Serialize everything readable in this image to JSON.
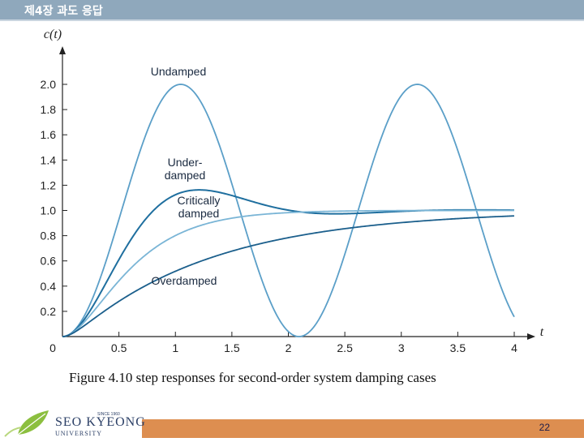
{
  "header": {
    "title": "제4장 과도 응답"
  },
  "caption": "Figure 4.10  step responses for second-order system damping cases",
  "footer": {
    "logo_name": "SEO KYEONG",
    "logo_sub": "UNIVERSITY",
    "logo_since": "SINCE 1960",
    "page_number": "22"
  },
  "colors": {
    "header": "#8fa8bc",
    "footer": "#dd8e50",
    "curve": "#2f7fb0"
  },
  "chart_data": {
    "type": "line",
    "ylabel": "c(t)",
    "xlabel": "t",
    "xlim": [
      0,
      4
    ],
    "ylim": [
      0,
      2.0
    ],
    "x_ticks": [
      "0",
      "0.5",
      "1",
      "1.5",
      "2",
      "2.5",
      "3",
      "3.5",
      "4"
    ],
    "y_ticks": [
      "0.2",
      "0.4",
      "0.6",
      "0.8",
      "1.0",
      "1.2",
      "1.4",
      "1.6",
      "1.8",
      "2.0"
    ],
    "grid": false,
    "series": [
      {
        "name": "Undamped",
        "zeta": 0,
        "omega_n": 3,
        "color": "#5b9fc8",
        "width": 1.8
      },
      {
        "name": "Underdamped",
        "label_lines": [
          "Under-",
          "damped"
        ],
        "zeta": 0.5,
        "omega_n": 3,
        "color": "#1f6f9f",
        "width": 2.0
      },
      {
        "name": "Critically damped",
        "label_lines": [
          "Critically",
          "damped"
        ],
        "zeta": 1,
        "omega_n": 3,
        "color": "#7ab5d6",
        "width": 1.8
      },
      {
        "name": "Overdamped",
        "zeta": 2,
        "omega_n": 3,
        "color": "#1b5f8c",
        "width": 1.8
      }
    ]
  }
}
